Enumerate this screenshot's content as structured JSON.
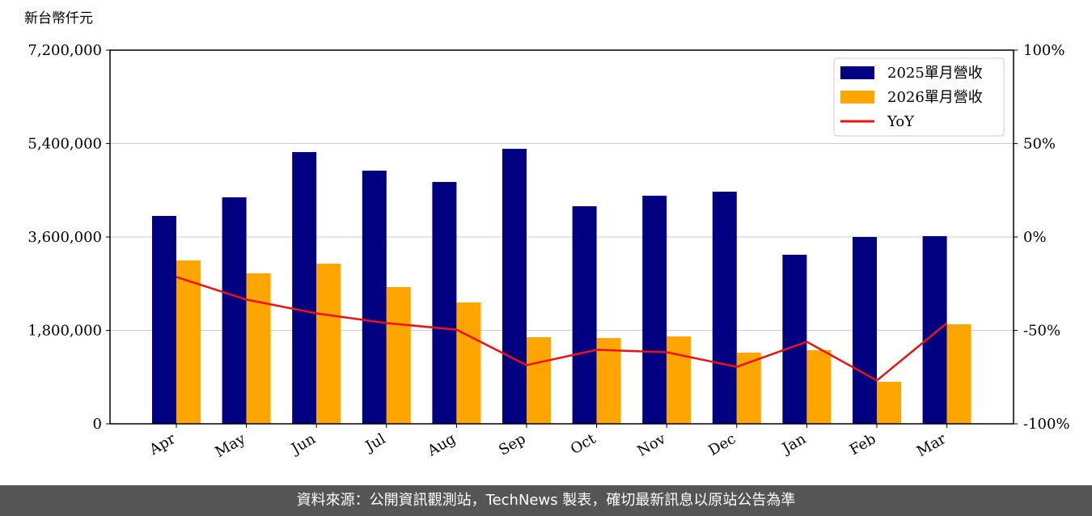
{
  "chart_data": {
    "type": "bar_line",
    "y_label": "新台幣仟元",
    "categories": [
      "Apr",
      "May",
      "Jun",
      "Jul",
      "Aug",
      "Sep",
      "Oct",
      "Nov",
      "Dec",
      "Jan",
      "Feb",
      "Mar"
    ],
    "series": [
      {
        "name": "2025單月營收",
        "color": "#000080",
        "type": "bar",
        "values": [
          4005000,
          4364000,
          5236000,
          4878000,
          4660000,
          5299000,
          4192000,
          4395000,
          4473000,
          3257000,
          3600000,
          3616000
        ]
      },
      {
        "name": "2026單月營收",
        "color": "#ffa500",
        "type": "bar",
        "values": [
          3148000,
          2899000,
          3086000,
          2634000,
          2338000,
          1668000,
          1652000,
          1683000,
          1371000,
          1418000,
          810000,
          1917000
        ]
      },
      {
        "name": "YoY",
        "color": "#ee1111",
        "type": "line",
        "axis": "y2",
        "values": [
          -21.4,
          -33.5,
          -40.9,
          -46.1,
          -49.6,
          -68.6,
          -60.4,
          -61.7,
          -69.5,
          -56.1,
          -76.8,
          -46.1
        ]
      }
    ],
    "ylim": [
      0,
      7200000
    ],
    "yticks": [
      0,
      {
        "value": 1800000,
        "label": "1,800,000"
      },
      {
        "value": 3600000,
        "label": "3,600,000"
      },
      {
        "value": 5400000,
        "label": "5,400,000"
      },
      {
        "value": 7200000,
        "label": "7,200,000"
      }
    ],
    "y2lim": [
      -100,
      100
    ],
    "y2ticks": [
      {
        "value": -100,
        "label": "-100%"
      },
      {
        "value": -50,
        "label": "-50%"
      },
      {
        "value": 0,
        "label": "0%"
      },
      {
        "value": 50,
        "label": "50%"
      },
      {
        "value": 100,
        "label": "100%"
      }
    ],
    "grid": true,
    "legend": "upper right"
  },
  "footer": "資料來源：公開資訊觀測站，TechNews 製表，確切最新訊息以原站公告為準"
}
